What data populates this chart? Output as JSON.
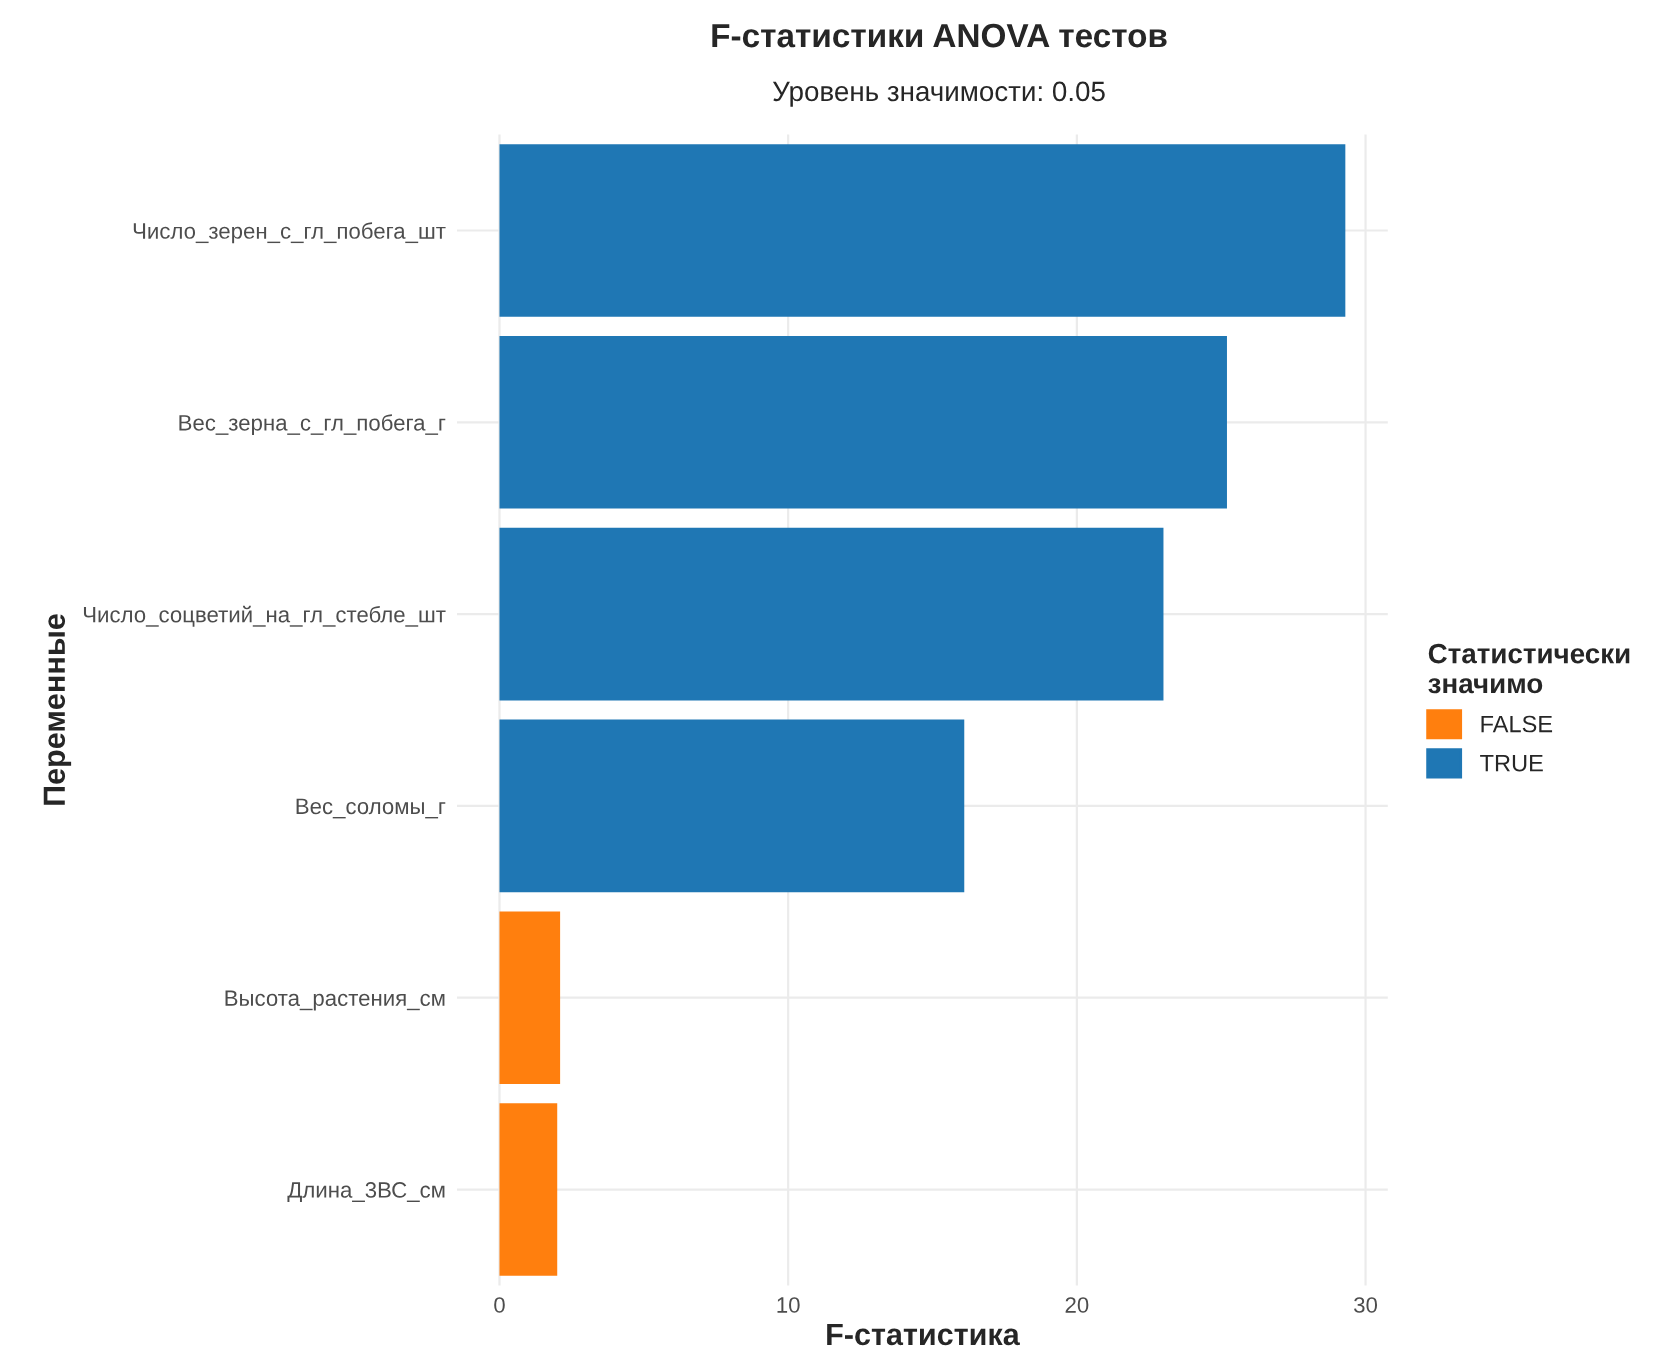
{
  "chart_data": {
    "type": "bar",
    "orientation": "horizontal",
    "title": "F-статистики ANOVA тестов",
    "subtitle": "Уровень значимости: 0.05",
    "xlabel": "F-статистика",
    "ylabel": "Переменные",
    "legend_title": "Статистически\nзначимо",
    "categories": [
      "Число_зерен_с_гл_побега_шт",
      "Вес_зерна_с_гл_побега_г",
      "Число_соцветий_на_гл_стебле_шт",
      "Вес_соломы_г",
      "Высота_растения_см",
      "Длина_3ВС_см"
    ],
    "series": [
      {
        "name": "FALSE",
        "color": "#ff7f0e",
        "values": [
          null,
          null,
          null,
          null,
          2.1,
          2.0
        ]
      },
      {
        "name": "TRUE",
        "color": "#1f77b4",
        "values": [
          29.3,
          25.2,
          23.0,
          16.1,
          null,
          null
        ]
      }
    ],
    "xlim": [
      -1.47,
      30.77
    ],
    "xticks": [
      0,
      10,
      20,
      30
    ],
    "grid": true,
    "legend": "right"
  }
}
